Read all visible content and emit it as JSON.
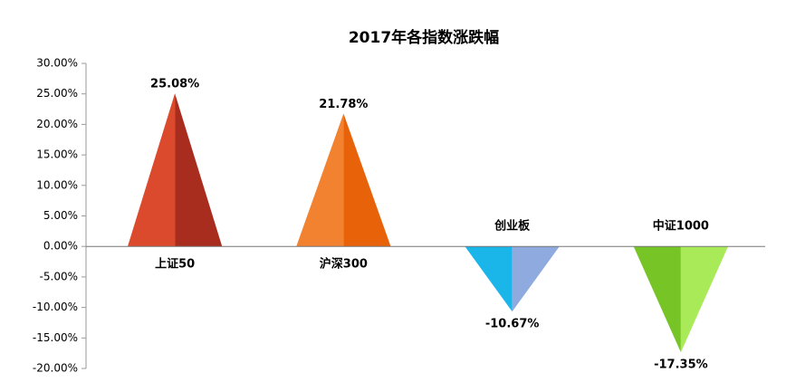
{
  "chart_data": {
    "type": "bar",
    "title": "2017年各指数涨跌幅",
    "categories": [
      "上证50",
      "沪深300",
      "创业板",
      "中证1000"
    ],
    "values": [
      25.08,
      21.78,
      -10.67,
      -17.35
    ],
    "value_labels": [
      "25.08%",
      "21.78%",
      "-10.67%",
      "-17.35%"
    ],
    "colors": [
      [
        "#dc4a2e",
        "#a92d1f"
      ],
      [
        "#f28130",
        "#e8620a"
      ],
      [
        "#1ab6ea",
        "#8eaadf"
      ],
      [
        "#76c426",
        "#a8ea58"
      ]
    ],
    "ylim": [
      -20,
      30
    ],
    "yticks": [
      {
        "value": -20,
        "label": "-20.00%"
      },
      {
        "value": -15,
        "label": "-15.00%"
      },
      {
        "value": -10,
        "label": "-10.00%"
      },
      {
        "value": -5,
        "label": "-5.00%"
      },
      {
        "value": 0,
        "label": "0.00%"
      },
      {
        "value": 5,
        "label": "5.00%"
      },
      {
        "value": 10,
        "label": "10.00%"
      },
      {
        "value": 15,
        "label": "15.00%"
      },
      {
        "value": 20,
        "label": "20.00%"
      },
      {
        "value": 25,
        "label": "25.00%"
      },
      {
        "value": 30,
        "label": "30.00%"
      }
    ],
    "grid": false
  }
}
